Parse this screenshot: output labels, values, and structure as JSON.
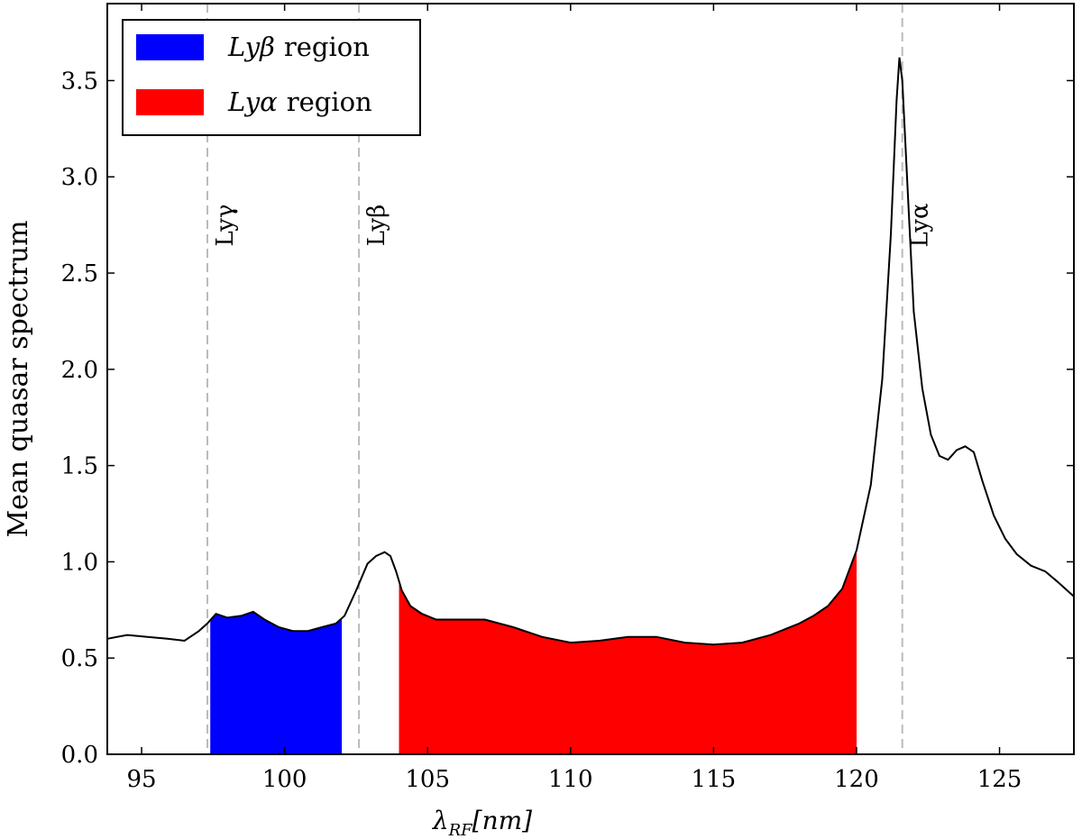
{
  "chart_data": {
    "type": "area",
    "xlabel": {
      "symbol": "λ",
      "subscript": "RF",
      "unit": "[nm]"
    },
    "ylabel": "Mean quasar spectrum",
    "xlim": [
      93.8,
      127.6
    ],
    "ylim": [
      0,
      3.9
    ],
    "xticks": [
      95,
      100,
      105,
      110,
      115,
      120,
      125
    ],
    "yticks": [
      0.0,
      0.5,
      1.0,
      1.5,
      2.0,
      2.5,
      3.0,
      3.5
    ],
    "ytick_labels": [
      "0.0",
      "0.5",
      "1.0",
      "1.5",
      "2.0",
      "2.5",
      "3.0",
      "3.5"
    ],
    "grid": false,
    "legend_position": "top-left",
    "series": [
      {
        "name": "Mean quasar spectrum",
        "color": "#000000",
        "x": [
          93.8,
          94.5,
          95.2,
          95.9,
          96.5,
          97.0,
          97.3,
          97.6,
          98.0,
          98.5,
          98.9,
          99.3,
          99.8,
          100.3,
          100.8,
          101.3,
          101.8,
          102.1,
          102.5,
          102.9,
          103.2,
          103.5,
          103.7,
          103.9,
          104.1,
          104.4,
          104.8,
          105.3,
          106.0,
          107.0,
          108.0,
          109.0,
          110.0,
          111.0,
          112.0,
          113.0,
          114.0,
          115.0,
          116.0,
          117.0,
          118.0,
          118.5,
          119.0,
          119.5,
          120.0,
          120.5,
          120.9,
          121.2,
          121.4,
          121.5,
          121.6,
          121.8,
          122.0,
          122.3,
          122.6,
          122.9,
          123.2,
          123.5,
          123.8,
          124.1,
          124.4,
          124.8,
          125.2,
          125.6,
          126.1,
          126.6,
          127.0,
          127.6
        ],
        "values": [
          0.6,
          0.62,
          0.61,
          0.6,
          0.59,
          0.64,
          0.68,
          0.73,
          0.71,
          0.72,
          0.74,
          0.7,
          0.66,
          0.64,
          0.64,
          0.66,
          0.68,
          0.72,
          0.85,
          0.99,
          1.03,
          1.05,
          1.03,
          0.95,
          0.85,
          0.77,
          0.73,
          0.7,
          0.7,
          0.7,
          0.66,
          0.61,
          0.58,
          0.59,
          0.61,
          0.61,
          0.58,
          0.57,
          0.58,
          0.62,
          0.68,
          0.72,
          0.77,
          0.86,
          1.06,
          1.4,
          1.95,
          2.7,
          3.4,
          3.62,
          3.5,
          2.9,
          2.3,
          1.9,
          1.66,
          1.55,
          1.53,
          1.58,
          1.6,
          1.57,
          1.42,
          1.24,
          1.12,
          1.04,
          0.98,
          0.95,
          0.9,
          0.82
        ]
      }
    ],
    "shaded_regions": [
      {
        "name": "Lyβ region",
        "label_symbol": "Lyβ",
        "label_text": "region",
        "x_start": 97.4,
        "x_end": 102.0,
        "color": "#0000ff"
      },
      {
        "name": "Lyα region",
        "label_symbol": "Lyα",
        "label_text": "region",
        "x_start": 104.0,
        "x_end": 120.0,
        "color": "#ff0000"
      }
    ],
    "vertical_lines": [
      {
        "x": 97.3,
        "label": "Lyγ",
        "color": "#bbbbbb",
        "style": "dashed"
      },
      {
        "x": 102.6,
        "label": "Lyβ",
        "color": "#bbbbbb",
        "style": "dashed"
      },
      {
        "x": 121.6,
        "label": "Lyα",
        "color": "#bbbbbb",
        "style": "dashed"
      }
    ]
  }
}
